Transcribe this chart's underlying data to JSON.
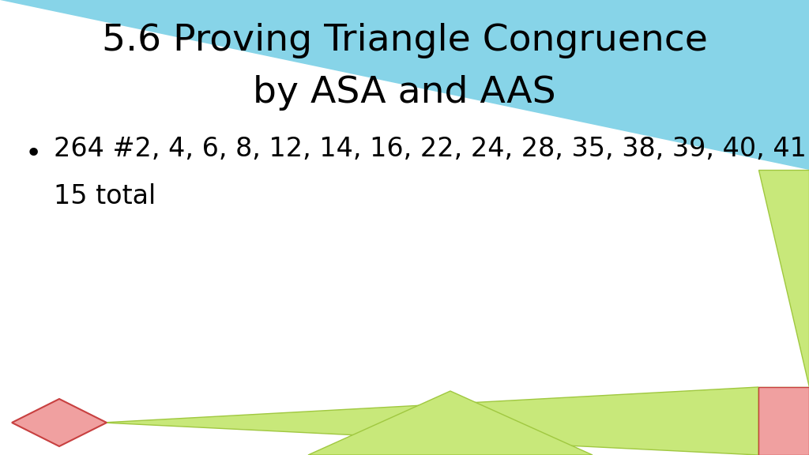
{
  "title_line1": "5.6 Proving Triangle Congruence",
  "title_line2": "by ASA and AAS",
  "bullet_line1": "264 #2, 4, 6, 8, 12, 14, 16, 22, 24, 28, 35, 38, 39, 40, 41 =",
  "bullet_line2": "15 total",
  "bg_color": "#ffffff",
  "title_bg_color": "#87d4e8",
  "light_green": "#c8e87a",
  "green_edge": "#a0c840",
  "pink_fill": "#f0a0a0",
  "pink_edge": "#c84040",
  "title_font_size": 34,
  "bullet_font_size": 24
}
